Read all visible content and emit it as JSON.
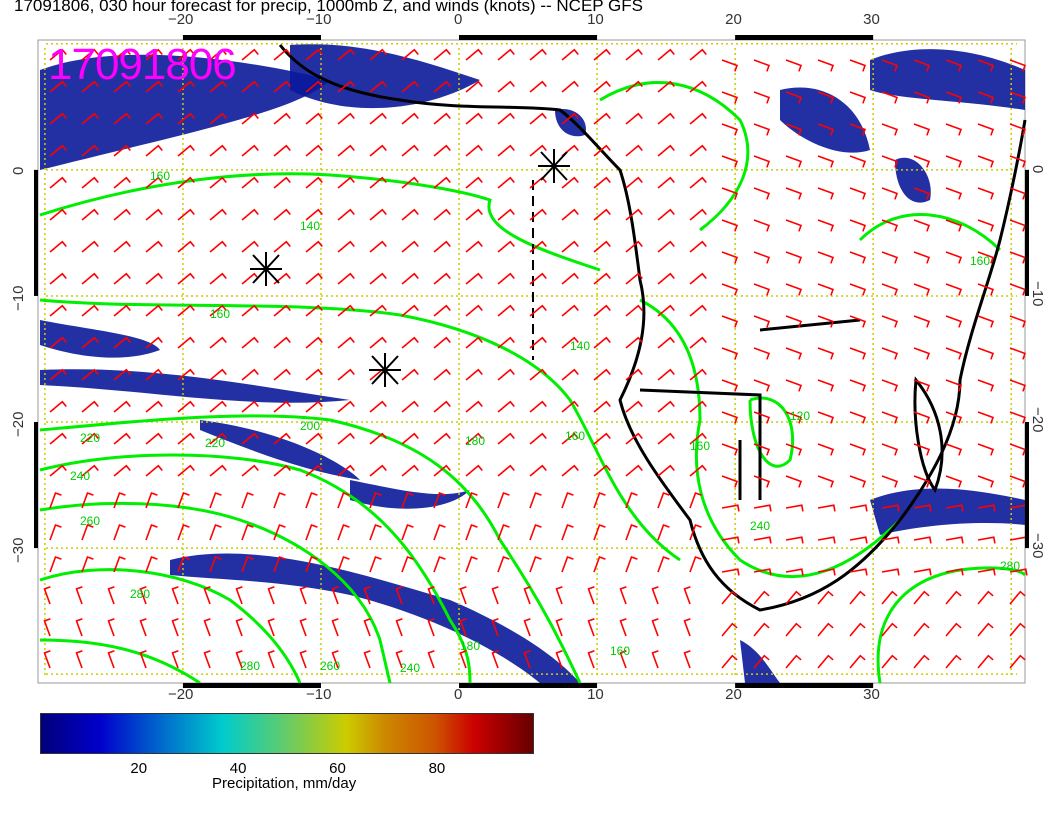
{
  "title": "17091806, 030 hour forecast for precip, 1000mb Z, and winds (knots) -- NCEP GFS",
  "stamp": "17091806",
  "axes": {
    "lon_ticks": [
      "−20",
      "−10",
      "0",
      "10",
      "20",
      "30"
    ],
    "lon_values": [
      -20,
      -10,
      0,
      10,
      20,
      30
    ],
    "lat_ticks": [
      "0",
      "−10",
      "−20",
      "−30"
    ],
    "lat_values": [
      0,
      -10,
      -20,
      -30
    ],
    "lon_range": [
      -30.5,
      41
    ],
    "lat_range": [
      -40.7,
      10.3
    ],
    "grid": true
  },
  "colorbar": {
    "label": "Precipitation, mm/day",
    "ticks": [
      "20",
      "40",
      "60",
      "80"
    ],
    "tick_values": [
      20,
      40,
      60,
      80
    ],
    "range": [
      0,
      99
    ]
  },
  "contour_labels": [
    "160",
    "140",
    "160",
    "220",
    "220",
    "200",
    "240",
    "260",
    "280",
    "180",
    "160",
    "140",
    "120",
    "160",
    "240",
    "280",
    "280",
    "260",
    "240",
    "160",
    "180",
    "160"
  ],
  "colors": {
    "precip_low": "#00007a",
    "contour": "#00ee00",
    "wind_barb": "#ff0000",
    "coast": "#000000",
    "grid": "#cccc00",
    "stamp": "#ff00ff"
  }
}
